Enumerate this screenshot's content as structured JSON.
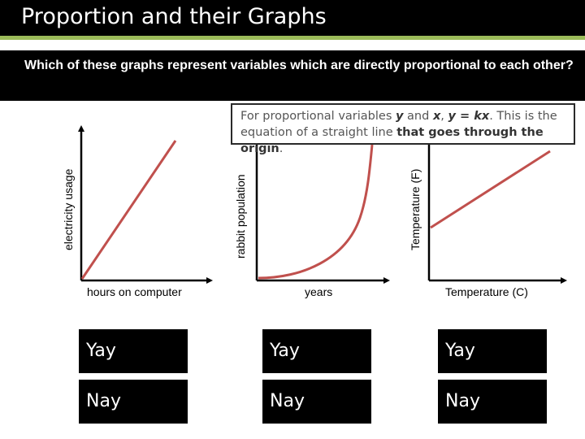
{
  "header": {
    "title": "Proportion and their Graphs"
  },
  "question": {
    "text": "Which of these graphs represent variables which are directly proportional to each other?"
  },
  "hint": {
    "text_before": "For proportional variables ",
    "var_y": "y",
    "text_and": " and ",
    "var_x": "x",
    "text_comma": ", ",
    "equation": "y = kx",
    "text_mid": ". This is the equation of a straight line ",
    "text_bold": "that goes through the origin",
    "text_end": "."
  },
  "colors": {
    "curve": "#c0504d",
    "accent_rule": "#9bbb59",
    "bar": "#000000"
  },
  "chart_data": [
    {
      "type": "line",
      "shape": "straight line through origin",
      "xlabel": "hours on computer",
      "ylabel": "electricity usage",
      "x": [
        0,
        1
      ],
      "y": [
        0,
        1
      ]
    },
    {
      "type": "line",
      "shape": "increasing curve (exponential) starting at origin",
      "xlabel": "years",
      "ylabel": "rabbit population"
    },
    {
      "type": "line",
      "shape": "straight line with positive y-intercept",
      "xlabel": "Temperature (C)",
      "ylabel": "Temperature (F)"
    }
  ],
  "answers": {
    "col1": {
      "yay": "Yay",
      "nay": "Nay"
    },
    "col2": {
      "yay": "Yay",
      "nay": "Nay"
    },
    "col3": {
      "yay": "Yay",
      "nay": "Nay"
    }
  }
}
